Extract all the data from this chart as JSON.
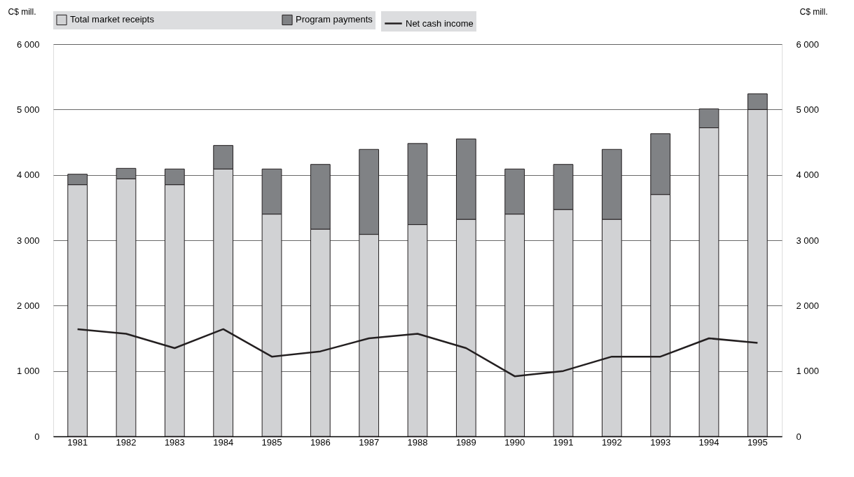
{
  "chart_data": {
    "type": "bar",
    "stacked": true,
    "categories": [
      "1981",
      "1982",
      "1983",
      "1984",
      "1985",
      "1986",
      "1987",
      "1988",
      "1989",
      "1990",
      "1991",
      "1992",
      "1993",
      "1994",
      "1995"
    ],
    "series": [
      {
        "name": "Total market receipts",
        "color": "#d1d2d4",
        "values": [
          3850,
          3940,
          3850,
          4090,
          3400,
          3170,
          3090,
          3240,
          3320,
          3400,
          3470,
          3320,
          3700,
          4720,
          5000
        ]
      },
      {
        "name": "Program payments",
        "color": "#808285",
        "values": [
          160,
          160,
          240,
          360,
          690,
          990,
          1300,
          1240,
          1230,
          690,
          690,
          1070,
          930,
          290,
          240
        ]
      },
      {
        "name": "Net cash income",
        "type": "line",
        "color": "#231f20",
        "values": [
          1640,
          1570,
          1350,
          1640,
          1220,
          1300,
          1500,
          1570,
          1350,
          920,
          1000,
          1220,
          1220,
          1500,
          1430
        ]
      }
    ],
    "ylabel": "C$ mill.",
    "y2label": "C$ mill.",
    "ylim": [
      0,
      6000
    ],
    "yticks": [
      0,
      {
        "value": 1000,
        "label": "1 000"
      },
      {
        "value": 2000,
        "label": "2 000"
      },
      {
        "value": 3000,
        "label": "3 000"
      },
      {
        "value": 4000,
        "label": "4 000"
      },
      {
        "value": 5000,
        "label": "5 000"
      },
      {
        "value": 6000,
        "label": "6 000"
      }
    ],
    "y2lim": [
      0,
      6000
    ],
    "y2ticks": [
      0,
      {
        "value": 1000,
        "label": "1 000"
      },
      {
        "value": 2000,
        "label": "2 000"
      },
      {
        "value": 3000,
        "label": "3 000"
      },
      {
        "value": 4000,
        "label": "4 000"
      },
      {
        "value": 5000,
        "label": "5 000"
      },
      {
        "value": 6000,
        "label": "6 000"
      }
    ],
    "grid": "y",
    "legend": "top",
    "line_style": "solid",
    "marker": "none"
  }
}
